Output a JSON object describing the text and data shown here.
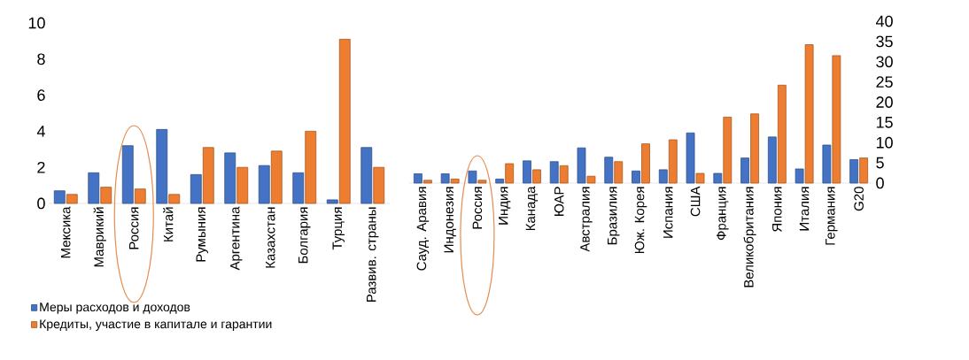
{
  "chart_data": [
    {
      "type": "bar",
      "categories": [
        "Мексика",
        "Маврикий",
        "Россия",
        "Китай",
        "Румыния",
        "Аргентина",
        "Казахстан",
        "Болгария",
        "Турция",
        "Развив. страны"
      ],
      "series": [
        {
          "name": "Меры расходов и доходов",
          "color": "#4472c4",
          "values": [
            0.7,
            1.7,
            3.2,
            4.1,
            1.6,
            2.8,
            2.1,
            1.7,
            0.2,
            3.1
          ]
        },
        {
          "name": "Кредиты, участие в капитале и гарантии",
          "color": "#ed7d31",
          "values": [
            0.5,
            0.9,
            0.8,
            0.5,
            3.1,
            2.0,
            2.9,
            4.0,
            9.1,
            2.0
          ]
        }
      ],
      "ylim": [
        0,
        10
      ],
      "yticks": [
        0,
        2,
        4,
        6,
        8,
        10
      ],
      "legend": "bottom left"
    },
    {
      "type": "bar",
      "categories": [
        "Сауд. Аравия",
        "Индонезия",
        "Россия",
        "Индия",
        "Канада",
        "ЮАР",
        "Австралия",
        "Бразилия",
        "Юж. Корея",
        "Испания",
        "США",
        "Франция",
        "Великобритания",
        "Япония",
        "Италия",
        "Германия",
        "G20"
      ],
      "series": [
        {
          "color": "#4472c4",
          "values": [
            2.3,
            2.3,
            3.0,
            1.0,
            5.5,
            5.3,
            8.7,
            6.4,
            3.0,
            3.3,
            12.4,
            2.4,
            6.2,
            11.4,
            3.5,
            9.4,
            5.8
          ]
        },
        {
          "color": "#ed7d31",
          "values": [
            0.7,
            1.0,
            0.7,
            4.8,
            3.3,
            4.3,
            1.7,
            5.3,
            9.7,
            10.7,
            2.4,
            16.3,
            17.1,
            24.2,
            34.2,
            31.5,
            6.2
          ]
        }
      ],
      "ylim": [
        0,
        40
      ],
      "yticks": [
        0,
        5,
        10,
        15,
        20,
        25,
        30,
        35,
        40
      ]
    }
  ]
}
